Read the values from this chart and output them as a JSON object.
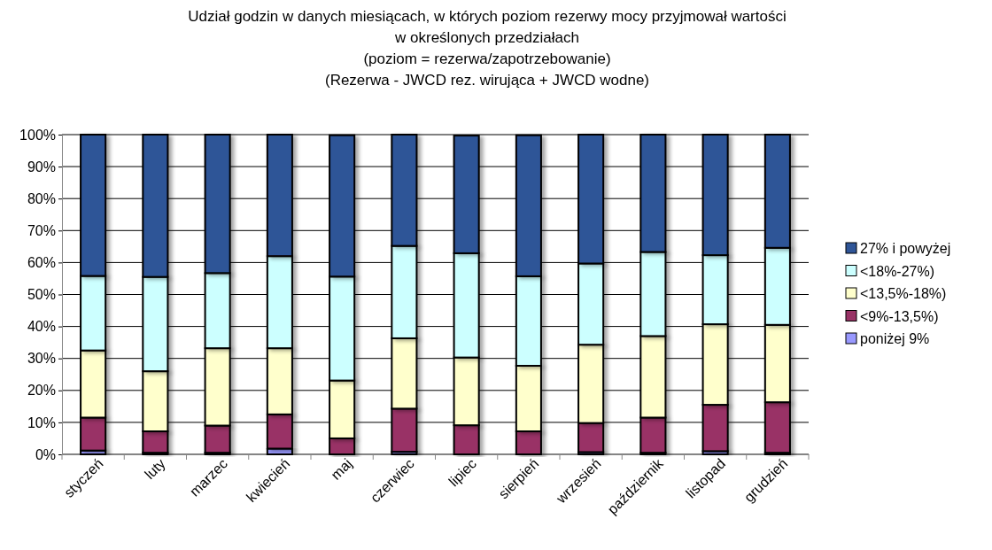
{
  "chart_data": {
    "type": "bar",
    "stacked": true,
    "title": "Udział godzin w danych miesiącach, w których poziom rezerwy mocy przyjmował wartości\nw określonych przedziałach\n(poziom = rezerwa/zapotrzebowanie)\n(Rezerwa - JWCD rez. wirująca + JWCD wodne)",
    "categories": [
      "styczeń",
      "luty",
      "marzec",
      "kwiecień",
      "maj",
      "czerwiec",
      "lipiec",
      "sierpień",
      "wrzesień",
      "październik",
      "listopad",
      "grudzień"
    ],
    "series": [
      {
        "name": "poniżej 9%",
        "color": "#9999ff",
        "values": [
          1.2,
          0.5,
          0.5,
          1.8,
          null,
          0.8,
          null,
          null,
          0.7,
          0.5,
          1,
          0.5
        ]
      },
      {
        "name": "<9%-13,5%)",
        "color": "#993366",
        "values": [
          10.3,
          6.7,
          8.5,
          10.7,
          5,
          13.5,
          9.1,
          7.2,
          9.1,
          11,
          14.5,
          15.8
        ]
      },
      {
        "name": "<13,5%-18%)",
        "color": "#ffffcc",
        "values": [
          21,
          18.8,
          24.2,
          20.7,
          18.1,
          22,
          21.2,
          20.5,
          24.5,
          25.5,
          25.2,
          24.2
        ]
      },
      {
        "name": "<18%-27%)",
        "color": "#ccffff",
        "values": [
          23.3,
          29.5,
          23.5,
          28.8,
          32.5,
          28.9,
          32.6,
          28,
          25.4,
          26.3,
          21.6,
          24.1
        ]
      },
      {
        "name": "27% i powyżej",
        "color": "#2f5597",
        "values": [
          44.2,
          44.5,
          43.3,
          38,
          44.2,
          34.8,
          36.8,
          44.1,
          40.3,
          36.7,
          37.7,
          35.4
        ]
      }
    ],
    "ylim": [
      0,
      100
    ],
    "yticks": [
      {
        "value": 0,
        "label": "0%"
      },
      {
        "value": 10,
        "label": "10%"
      },
      {
        "value": 20,
        "label": "20%"
      },
      {
        "value": 30,
        "label": "30%"
      },
      {
        "value": 40,
        "label": "40%"
      },
      {
        "value": 50,
        "label": "50%"
      },
      {
        "value": 60,
        "label": "60%"
      },
      {
        "value": 70,
        "label": "70%"
      },
      {
        "value": 80,
        "label": "80%"
      },
      {
        "value": 90,
        "label": "90%"
      },
      {
        "value": 100,
        "label": "100%"
      }
    ],
    "grid": "y",
    "legend": "right"
  }
}
